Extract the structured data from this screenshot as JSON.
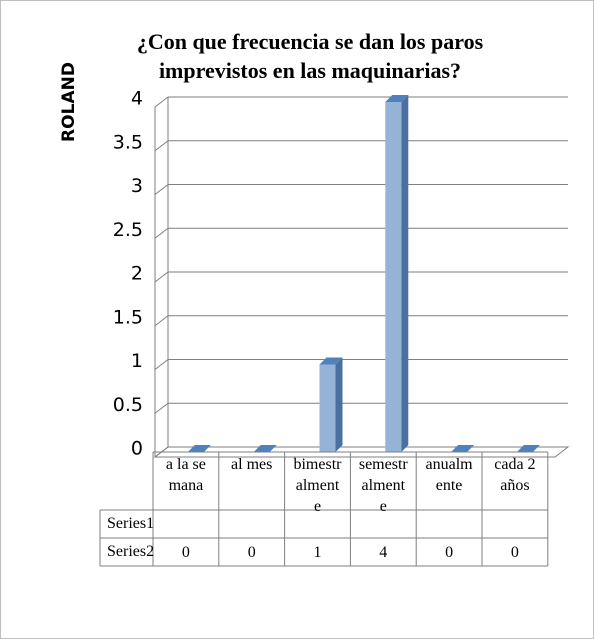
{
  "chart_data": {
    "type": "bar3d",
    "title": "¿Con que frecuencia se dan los paros imprevistos en las maquinarias?",
    "ylabel": "ROLAND",
    "categories": [
      "a la semana",
      "al mes",
      "bimestralmente",
      "semestralmente",
      "anualmente",
      "cada 2 años"
    ],
    "series": [
      {
        "name": "Series1",
        "color": "#4f81bd",
        "values": [
          null,
          null,
          null,
          null,
          null,
          null
        ]
      },
      {
        "name": "Series2",
        "color": "#95b3d7",
        "values": [
          0,
          0,
          1,
          4,
          0,
          0
        ]
      }
    ],
    "ylim": [
      0,
      4
    ],
    "yticks": [
      0,
      0.5,
      1,
      1.5,
      2,
      2.5,
      3,
      3.5,
      4
    ],
    "grid": true,
    "data_table": true
  }
}
